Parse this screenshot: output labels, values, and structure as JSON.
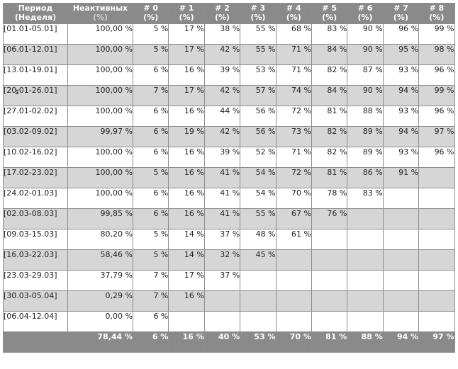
{
  "header": {
    "period_line1": "Период",
    "period_line2": "(Неделя)",
    "inactive_line1": "Неактивных",
    "inactive_line2": "(%)",
    "weeks": [
      {
        "l1": "# 0",
        "l2": "(%)"
      },
      {
        "l1": "# 1",
        "l2": "(%)"
      },
      {
        "l1": "# 2",
        "l2": "(%)"
      },
      {
        "l1": "# 3",
        "l2": "(%)"
      },
      {
        "l1": "# 4",
        "l2": "(%)"
      },
      {
        "l1": "# 5",
        "l2": "(%)"
      },
      {
        "l1": "# 6",
        "l2": "(%)"
      },
      {
        "l1": "# 7",
        "l2": "(%)"
      },
      {
        "l1": "# 8",
        "l2": "(%)"
      }
    ]
  },
  "rows": [
    {
      "period": "[01.01-05.01]",
      "inactive": "100,00 %",
      "weeks": [
        "5 %",
        "17 %",
        "38 %",
        "55 %",
        "68 %",
        "83 %",
        "90 %",
        "96 %",
        "99 %"
      ]
    },
    {
      "period": "[06.01-12.01]",
      "inactive": "100,00 %",
      "weeks": [
        "5 %",
        "17 %",
        "42 %",
        "55 %",
        "71 %",
        "84 %",
        "90 %",
        "95 %",
        "98 %"
      ]
    },
    {
      "period": "[13.01-19.01]",
      "inactive": "100,00 %",
      "weeks": [
        "6 %",
        "16 %",
        "39 %",
        "53 %",
        "71 %",
        "82 %",
        "87 %",
        "93 %",
        "96 %"
      ]
    },
    {
      "period": "[20.01-26.01]",
      "inactive": "100,00 %",
      "weeks": [
        "7 %",
        "17 %",
        "42 %",
        "57 %",
        "74 %",
        "84 %",
        "90 %",
        "94 %",
        "99 %"
      ]
    },
    {
      "period": "[27.01-02.02]",
      "inactive": "100,00 %",
      "weeks": [
        "6 %",
        "16 %",
        "44 %",
        "56 %",
        "72 %",
        "81 %",
        "88 %",
        "93 %",
        "96 %"
      ]
    },
    {
      "period": "[03.02-09.02]",
      "inactive": "99,97 %",
      "weeks": [
        "6 %",
        "19 %",
        "42 %",
        "56 %",
        "73 %",
        "82 %",
        "89 %",
        "94 %",
        "97 %"
      ]
    },
    {
      "period": "[10.02-16.02]",
      "inactive": "100,00 %",
      "weeks": [
        "6 %",
        "16 %",
        "39 %",
        "52 %",
        "71 %",
        "82 %",
        "89 %",
        "93 %",
        "96 %"
      ]
    },
    {
      "period": "[17.02-23.02]",
      "inactive": "100,00 %",
      "weeks": [
        "5 %",
        "16 %",
        "41 %",
        "54 %",
        "72 %",
        "81 %",
        "86 %",
        "91 %",
        ""
      ]
    },
    {
      "period": "[24.02-01.03]",
      "inactive": "100,00 %",
      "weeks": [
        "6 %",
        "16 %",
        "41 %",
        "54 %",
        "70 %",
        "78 %",
        "83 %",
        "",
        ""
      ]
    },
    {
      "period": "[02.03-08.03]",
      "inactive": "99,85 %",
      "weeks": [
        "6 %",
        "16 %",
        "41 %",
        "55 %",
        "67 %",
        "76 %",
        "",
        "",
        ""
      ]
    },
    {
      "period": "[09.03-15.03]",
      "inactive": "80,20 %",
      "weeks": [
        "5 %",
        "14 %",
        "37 %",
        "48 %",
        "61 %",
        "",
        "",
        "",
        ""
      ]
    },
    {
      "period": "[16.03-22.03]",
      "inactive": "58,46 %",
      "weeks": [
        "5 %",
        "14 %",
        "32 %",
        "45 %",
        "",
        "",
        "",
        "",
        ""
      ]
    },
    {
      "period": "[23.03-29.03]",
      "inactive": "37,79 %",
      "weeks": [
        "7 %",
        "17 %",
        "37 %",
        "",
        "",
        "",
        "",
        "",
        ""
      ]
    },
    {
      "period": "[30.03-05.04]",
      "inactive": "0,29 %",
      "weeks": [
        "7 %",
        "16 %",
        "",
        "",
        "",
        "",
        "",
        "",
        ""
      ]
    },
    {
      "period": "[06.04-12.04]",
      "inactive": "0,00 %",
      "weeks": [
        "6 %",
        "",
        "",
        "",
        "",
        "",
        "",
        "",
        ""
      ]
    }
  ],
  "totals": {
    "period": "",
    "inactive": "78,44 %",
    "weeks": [
      "6 %",
      "16 %",
      "40 %",
      "53 %",
      "70 %",
      "81 %",
      "88 %",
      "94 %",
      "97 %"
    ]
  },
  "colors": {
    "header_bg": "#8a8a8a",
    "row_alt_bg": "#d6d6d6",
    "row_bg": "#ffffff",
    "border": "#8c8c8c"
  },
  "icons": {
    "cursor": "text-cursor-icon"
  }
}
